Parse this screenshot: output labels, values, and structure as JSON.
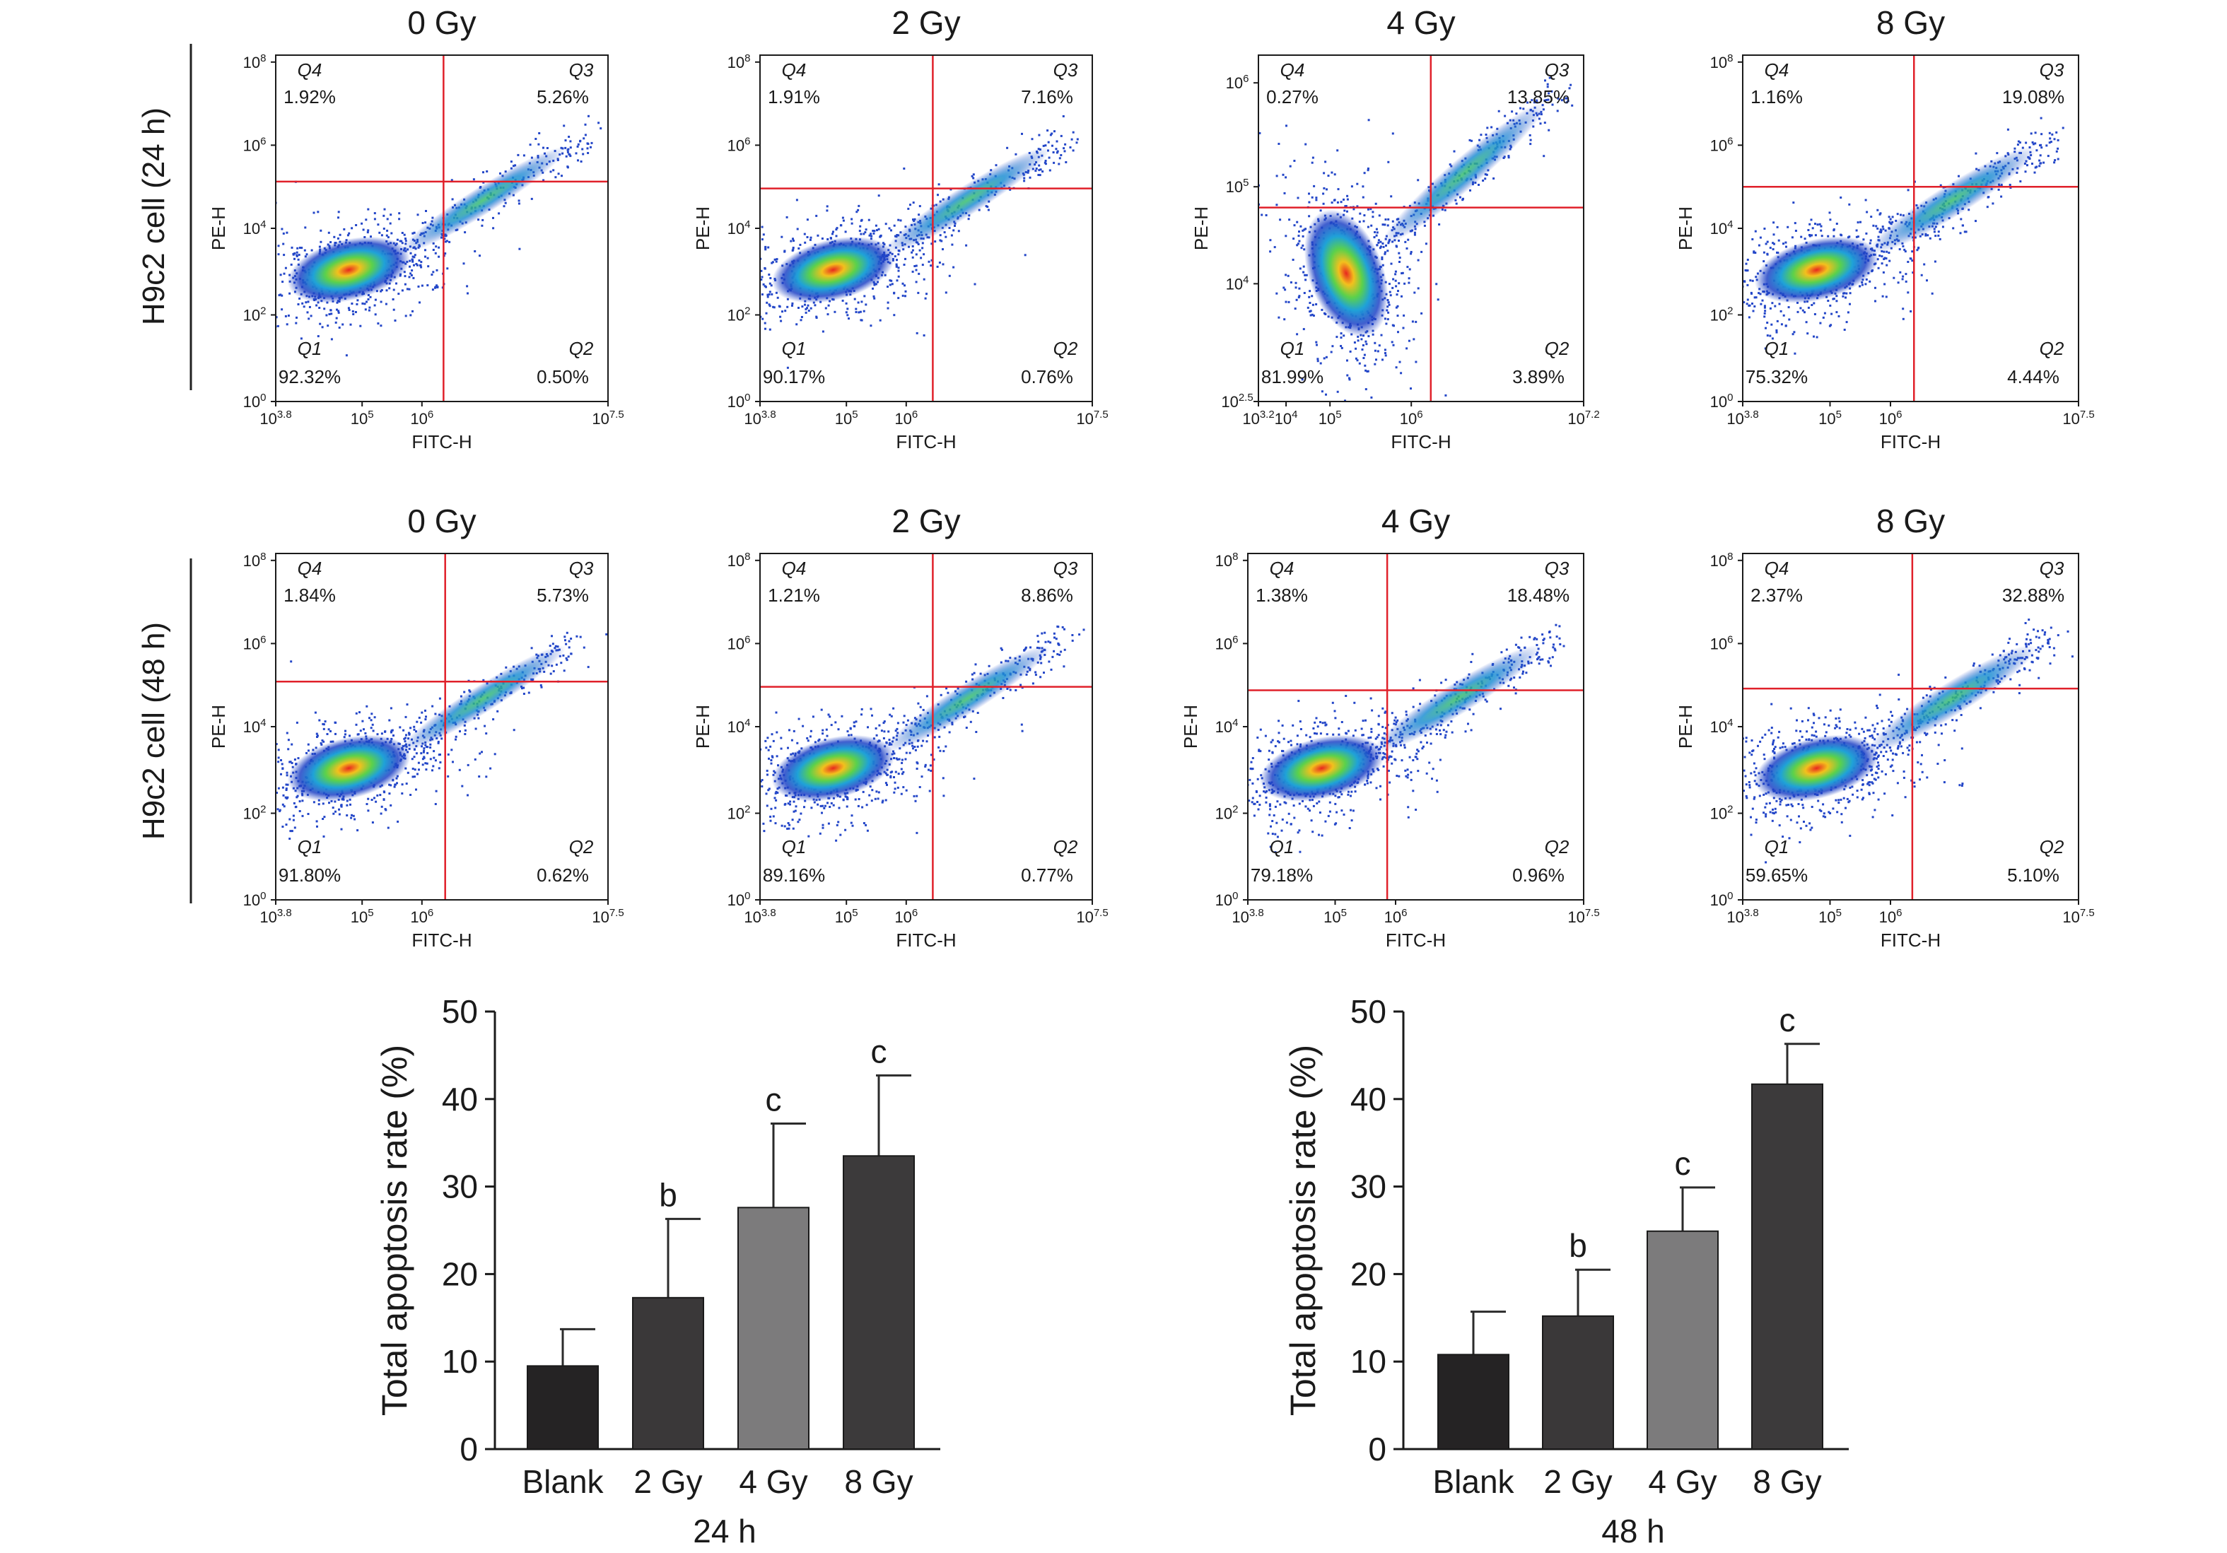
{
  "row_labels": [
    "H9c2 cell (24 h)",
    "H9c2 cell (48 h)"
  ],
  "flow_axes": {
    "xlabel": "FITC-H",
    "ylabel": "PE-H"
  },
  "chart_data": [
    {
      "type": "scatter",
      "id": "flow-24h-0gy",
      "title": "0 Gy",
      "xlabel": "FITC-H",
      "ylabel": "PE-H",
      "x_ticks": [
        "10^3.8",
        "10^5",
        "10^6",
        "10^7.5"
      ],
      "y_ticks": [
        "10^0",
        "10^2",
        "10^4",
        "10^6",
        "10^8"
      ],
      "quadrants": {
        "Q1": "92.32%",
        "Q2": "0.50%",
        "Q3": "5.26%",
        "Q4": "1.92%"
      }
    },
    {
      "type": "scatter",
      "id": "flow-24h-2gy",
      "title": "2 Gy",
      "xlabel": "FITC-H",
      "ylabel": "PE-H",
      "x_ticks": [
        "10^3.8",
        "10^5",
        "10^6",
        "10^7.5"
      ],
      "y_ticks": [
        "10^0",
        "10^2",
        "10^4",
        "10^6",
        "10^8"
      ],
      "quadrants": {
        "Q1": "90.17%",
        "Q2": "0.76%",
        "Q3": "7.16%",
        "Q4": "1.91%"
      }
    },
    {
      "type": "scatter",
      "id": "flow-24h-4gy",
      "title": "4 Gy",
      "xlabel": "FITC-H",
      "ylabel": "PE-H",
      "x_ticks": [
        "10^3.2",
        "10^4",
        "10^5",
        "10^6",
        "10^7.2"
      ],
      "y_ticks": [
        "10^2.5",
        "10^4",
        "10^5",
        "10^6"
      ],
      "quadrants": {
        "Q1": "81.99%",
        "Q2": "3.89%",
        "Q3": "13.85%",
        "Q4": "0.27%"
      }
    },
    {
      "type": "scatter",
      "id": "flow-24h-8gy",
      "title": "8 Gy",
      "xlabel": "FITC-H",
      "ylabel": "PE-H",
      "x_ticks": [
        "10^3.8",
        "10^5",
        "10^6",
        "10^7.5"
      ],
      "y_ticks": [
        "10^0",
        "10^2",
        "10^4",
        "10^6",
        "10^8"
      ],
      "quadrants": {
        "Q1": "75.32%",
        "Q2": "4.44%",
        "Q3": "19.08%",
        "Q4": "1.16%"
      }
    },
    {
      "type": "scatter",
      "id": "flow-48h-0gy",
      "title": "0 Gy",
      "xlabel": "FITC-H",
      "ylabel": "PE-H",
      "x_ticks": [
        "10^3.8",
        "10^5",
        "10^6",
        "10^7.5"
      ],
      "y_ticks": [
        "10^0",
        "10^2",
        "10^4",
        "10^6",
        "10^8"
      ],
      "quadrants": {
        "Q1": "91.80%",
        "Q2": "0.62%",
        "Q3": "5.73%",
        "Q4": "1.84%"
      }
    },
    {
      "type": "scatter",
      "id": "flow-48h-2gy",
      "title": "2 Gy",
      "xlabel": "FITC-H",
      "ylabel": "PE-H",
      "x_ticks": [
        "10^3.8",
        "10^5",
        "10^6",
        "10^7.5"
      ],
      "y_ticks": [
        "10^0",
        "10^2",
        "10^4",
        "10^6",
        "10^8"
      ],
      "quadrants": {
        "Q1": "89.16%",
        "Q2": "0.77%",
        "Q3": "8.86%",
        "Q4": "1.21%"
      }
    },
    {
      "type": "scatter",
      "id": "flow-48h-4gy",
      "title": "4 Gy",
      "xlabel": "FITC-H",
      "ylabel": "PE-H",
      "x_ticks": [
        "10^3.8",
        "10^5",
        "10^6",
        "10^7.5"
      ],
      "y_ticks": [
        "10^0",
        "10^2",
        "10^4",
        "10^6",
        "10^8"
      ],
      "quadrants": {
        "Q1": "79.18%",
        "Q2": "0.96%",
        "Q3": "18.48%",
        "Q4": "1.38%"
      }
    },
    {
      "type": "scatter",
      "id": "flow-48h-8gy",
      "title": "8 Gy",
      "xlabel": "FITC-H",
      "ylabel": "PE-H",
      "x_ticks": [
        "10^3.8",
        "10^5",
        "10^6",
        "10^7.5"
      ],
      "y_ticks": [
        "10^0",
        "10^2",
        "10^4",
        "10^6",
        "10^8"
      ],
      "quadrants": {
        "Q1": "59.65%",
        "Q2": "5.10%",
        "Q3": "32.88%",
        "Q4": "2.37%"
      }
    },
    {
      "type": "bar",
      "id": "bar-24h",
      "title": "",
      "xlabel": "24 h",
      "ylabel": "Total apoptosis rate (%)",
      "categories": [
        "Blank",
        "2 Gy",
        "4 Gy",
        "8 Gy"
      ],
      "values": [
        9.5,
        17.3,
        27.6,
        33.5
      ],
      "errors": [
        4.2,
        9.0,
        9.6,
        9.2
      ],
      "significance": [
        "",
        "b",
        "c",
        "c"
      ],
      "bar_colors": [
        "#252324",
        "#3a3839",
        "#7c7b7c",
        "#3c3a3b"
      ],
      "ylim": [
        0,
        50
      ],
      "yticks": [
        0,
        10,
        20,
        30,
        40,
        50
      ]
    },
    {
      "type": "bar",
      "id": "bar-48h",
      "title": "",
      "xlabel": "48 h",
      "ylabel": "Total apoptosis rate (%)",
      "categories": [
        "Blank",
        "2 Gy",
        "4 Gy",
        "8 Gy"
      ],
      "values": [
        10.8,
        15.2,
        24.9,
        41.7
      ],
      "errors": [
        4.9,
        5.3,
        5.0,
        4.6
      ],
      "significance": [
        "",
        "b",
        "c",
        "c"
      ],
      "bar_colors": [
        "#252324",
        "#3a3839",
        "#7c7b7c",
        "#3c3a3b"
      ],
      "ylim": [
        0,
        50
      ],
      "yticks": [
        0,
        10,
        20,
        30,
        40,
        50
      ]
    }
  ]
}
